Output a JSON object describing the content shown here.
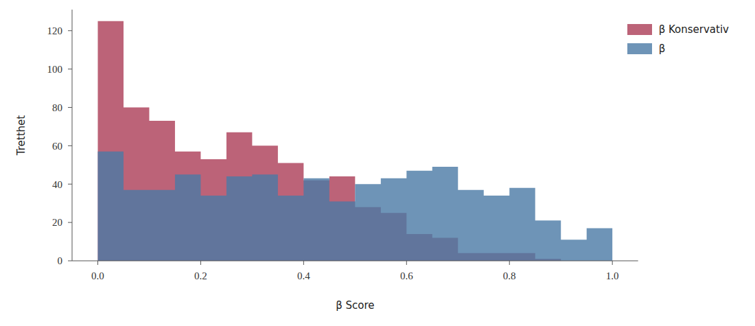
{
  "chart_data": {
    "type": "histogram",
    "x_label": "β Score",
    "y_label": "Tretthet",
    "bins": [
      0.0,
      0.05,
      0.1,
      0.15,
      0.2,
      0.25,
      0.3,
      0.35,
      0.4,
      0.45,
      0.5,
      0.55,
      0.6,
      0.65,
      0.7,
      0.75,
      0.8,
      0.85,
      0.9,
      0.95,
      1.0
    ],
    "series": [
      {
        "name": "β Konservativ",
        "color": "#bc6378",
        "values": [
          125,
          80,
          73,
          57,
          53,
          67,
          60,
          51,
          42,
          44,
          28,
          25,
          14,
          12,
          4,
          4,
          4,
          1,
          0,
          0
        ]
      },
      {
        "name": "β",
        "color": "#4a79a5",
        "values": [
          57,
          37,
          37,
          45,
          34,
          44,
          45,
          34,
          43,
          31,
          40,
          43,
          47,
          49,
          37,
          34,
          38,
          21,
          11,
          17
        ]
      }
    ],
    "xlim": [
      -0.05,
      1.05
    ],
    "ylim": [
      0,
      131
    ],
    "xticks": [
      {
        "value": 0.0,
        "label": "0.0"
      },
      {
        "value": 0.2,
        "label": "0.2"
      },
      {
        "value": 0.4,
        "label": "0.4"
      },
      {
        "value": 0.6,
        "label": "0.6"
      },
      {
        "value": 0.8,
        "label": "0.8"
      },
      {
        "value": 1.0,
        "label": "1.0"
      }
    ],
    "yticks": [
      0,
      20,
      40,
      60,
      80,
      100,
      120
    ],
    "grid": false,
    "legend": "upper right"
  }
}
